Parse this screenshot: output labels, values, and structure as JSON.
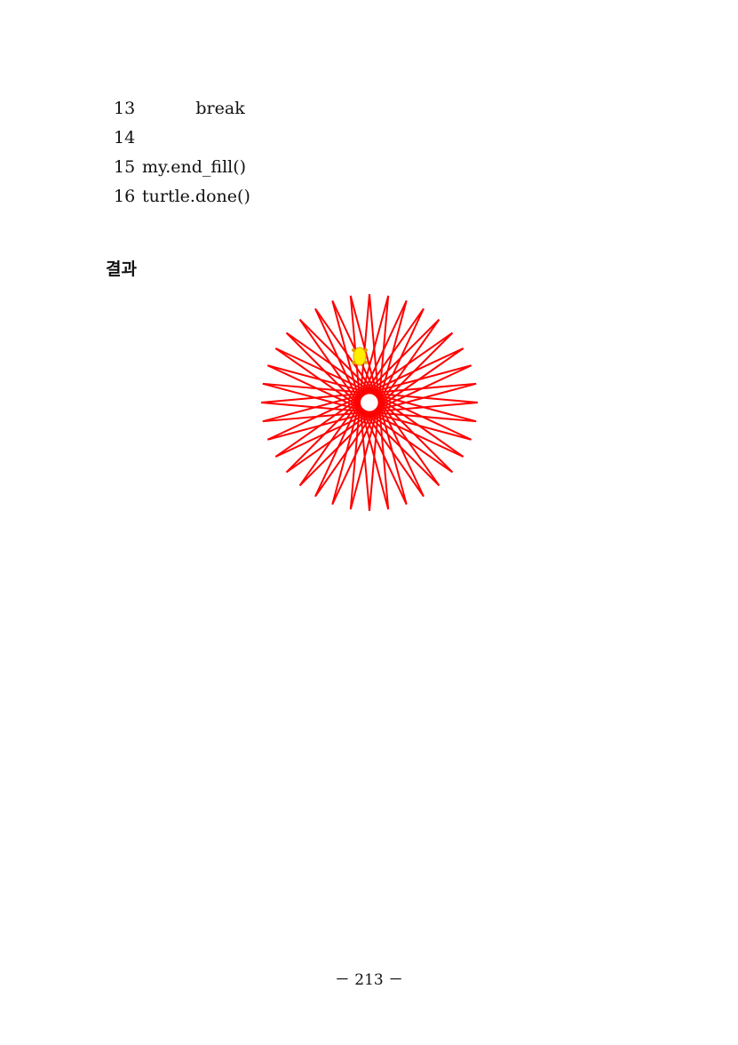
{
  "code": {
    "lines": [
      {
        "num": "13",
        "text": "          break"
      },
      {
        "num": "14",
        "text": ""
      },
      {
        "num": "15",
        "text": "my.end_fill()"
      },
      {
        "num": "16",
        "text": "turtle.done()"
      }
    ]
  },
  "result_heading": "결과",
  "figure": {
    "line_color": "#ff0000",
    "turtle_color": "#ffee00",
    "star_points": 36
  },
  "page_number": "－ 213 －"
}
